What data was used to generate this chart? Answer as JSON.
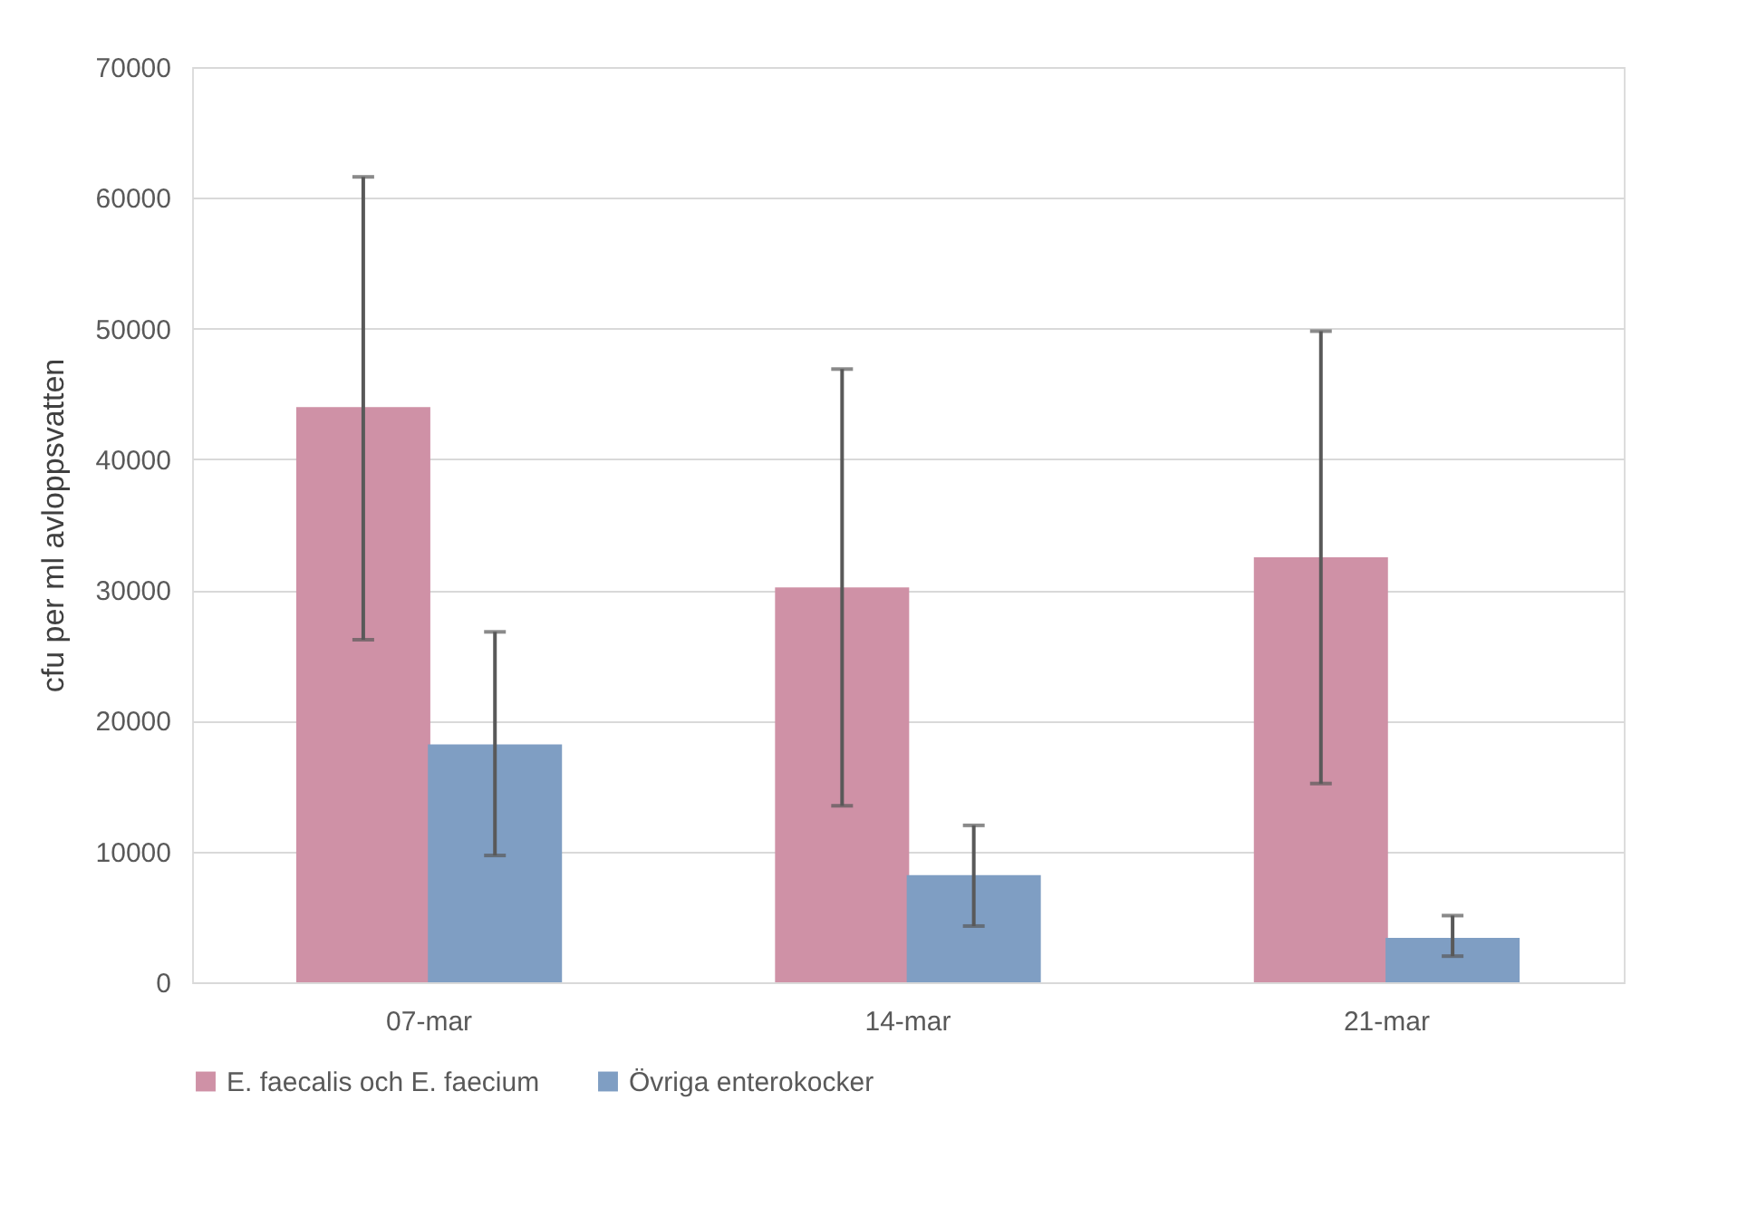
{
  "chart_data": {
    "type": "bar",
    "ylabel": "cfu per ml avloppsvatten",
    "categories": [
      "07-mar",
      "14-mar",
      "21-mar"
    ],
    "series": [
      {
        "name": "E. faecalis och E. faecium",
        "color": "#cf91a6",
        "values": [
          44000,
          30200,
          32500
        ],
        "errors": [
          [
            26200,
            61600
          ],
          [
            13500,
            46900
          ],
          [
            15200,
            49800
          ]
        ]
      },
      {
        "name": "Övriga enterokocker",
        "color": "#7f9ec3",
        "values": [
          18200,
          8200,
          3400
        ],
        "errors": [
          [
            9700,
            26800
          ],
          [
            4300,
            12000
          ],
          [
            2000,
            5100
          ]
        ]
      }
    ],
    "ylim": [
      0,
      70000
    ],
    "yticks": [
      0,
      10000,
      20000,
      30000,
      40000,
      50000,
      60000,
      70000
    ],
    "grid": "y",
    "legend": "bottom"
  }
}
